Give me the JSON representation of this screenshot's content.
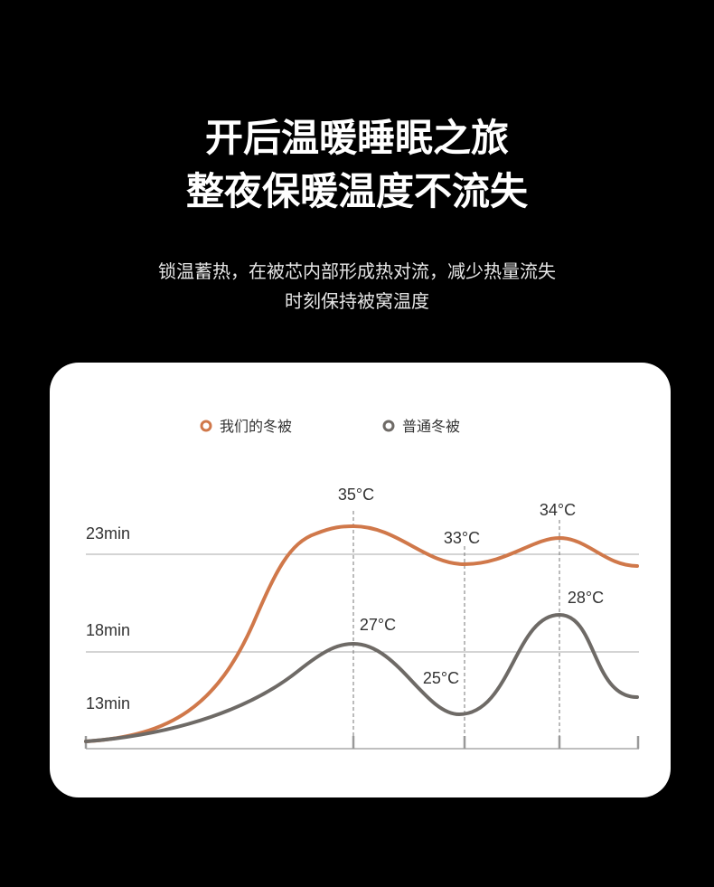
{
  "header": {
    "title_line1": "开后温暖睡眠之旅",
    "title_line2": "整夜保暖温度不流失",
    "subtitle_line1": "锁温蓄热，在被芯内部形成热对流，减少热量流失",
    "subtitle_line2": "时刻保持被窝温度"
  },
  "chart_data": {
    "type": "line",
    "legend_placement": "top",
    "grid": true,
    "y_tick_labels": [
      "23min",
      "18min",
      "13min"
    ],
    "series": [
      {
        "name": "我们的冬被",
        "color": "#d0784a",
        "annotations": [
          "35°C",
          "33°C",
          "34°C"
        ]
      },
      {
        "name": "普通冬被",
        "color": "#6e6a66",
        "annotations": [
          "27°C",
          "25°C",
          "28°C"
        ]
      }
    ]
  }
}
